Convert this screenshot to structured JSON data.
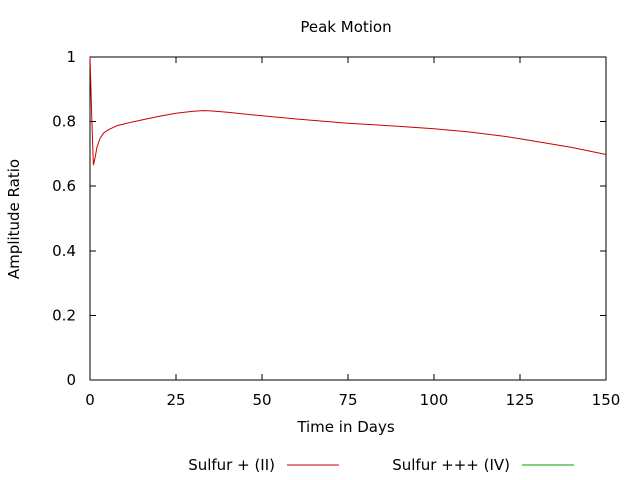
{
  "chart_data": {
    "type": "line",
    "title": "Peak Motion",
    "xlabel": "Time in Days",
    "ylabel": "Amplitude Ratio",
    "xlim": [
      0,
      150
    ],
    "ylim": [
      0,
      1
    ],
    "xticks": [
      0,
      25,
      50,
      75,
      100,
      125,
      150
    ],
    "yticks": [
      0,
      0.2,
      0.4,
      0.6,
      0.8,
      1
    ],
    "xtick_labels": [
      "0",
      "25",
      "50",
      "75",
      "100",
      "125",
      "150"
    ],
    "ytick_labels": [
      "0",
      "0.2",
      "0.4",
      "0.6",
      "0.8",
      "1"
    ],
    "grid": false,
    "legend_position": "bottom",
    "series": [
      {
        "name": "Sulfur + (II)",
        "color": "#cc0000",
        "x": [
          0,
          0.5,
          1,
          1.5,
          2,
          3,
          4,
          5,
          6,
          7,
          8,
          10,
          12,
          15,
          20,
          25,
          30,
          33,
          35,
          40,
          50,
          60,
          75,
          90,
          100,
          110,
          120,
          125,
          130,
          140,
          150
        ],
        "y": [
          1.0,
          0.82,
          0.665,
          0.69,
          0.72,
          0.75,
          0.765,
          0.772,
          0.778,
          0.783,
          0.788,
          0.793,
          0.798,
          0.805,
          0.816,
          0.826,
          0.832,
          0.834,
          0.833,
          0.829,
          0.818,
          0.808,
          0.795,
          0.785,
          0.778,
          0.768,
          0.755,
          0.747,
          0.738,
          0.72,
          0.698
        ]
      },
      {
        "name": "Sulfur +++ (IV)",
        "color": "#00a000",
        "x": [],
        "y": []
      }
    ]
  }
}
